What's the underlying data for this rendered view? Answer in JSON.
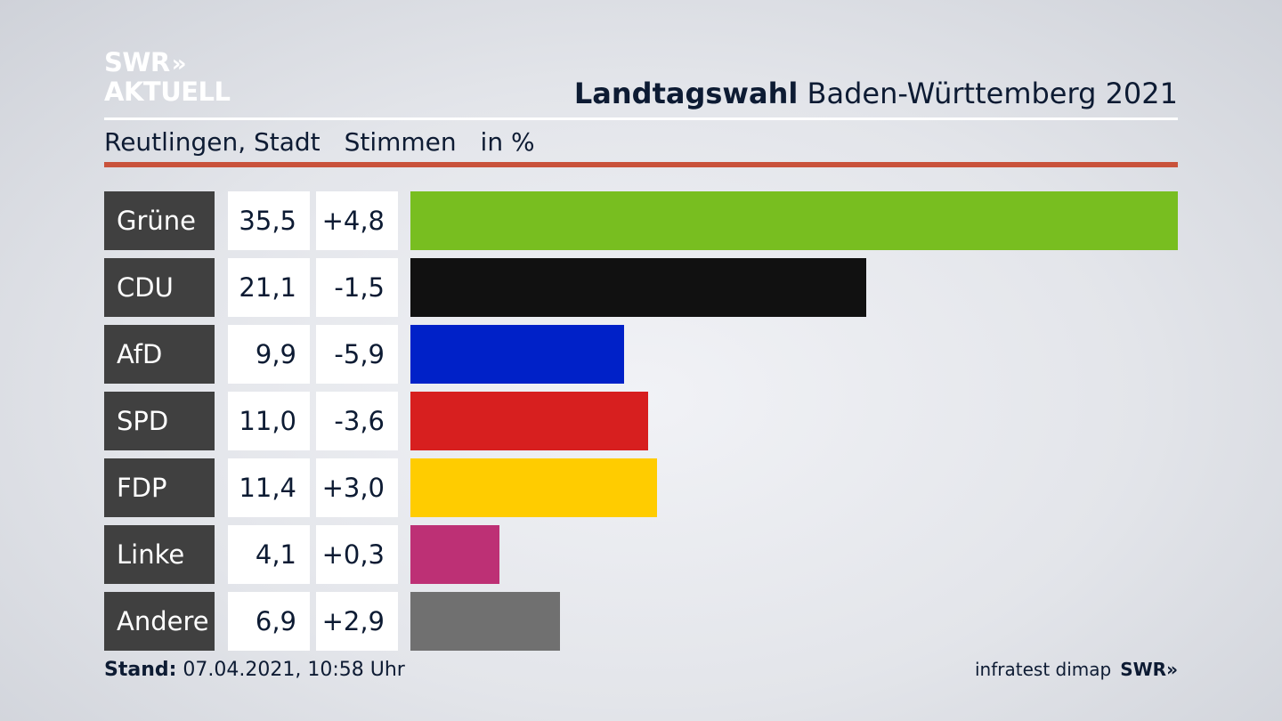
{
  "header": {
    "logo_line1": "SWR",
    "logo_chevrons": "»",
    "logo_line2": "AKTUELL",
    "title_bold": "Landtagswahl",
    "title_rest": "Baden-Württemberg 2021",
    "region": "Reutlingen, Stadt",
    "measure": "Stimmen",
    "unit": "in %"
  },
  "chart_data": {
    "type": "bar",
    "orientation": "horizontal",
    "categories": [
      "Grüne",
      "CDU",
      "AfD",
      "SPD",
      "FDP",
      "Linke",
      "Andere"
    ],
    "values": [
      35.5,
      21.1,
      9.9,
      11.0,
      11.4,
      4.1,
      6.9
    ],
    "value_labels": [
      "35,5",
      "21,1",
      "9,9",
      "11,0",
      "11,4",
      "4,1",
      "6,9"
    ],
    "change_labels": [
      "+4,8",
      "-1,5",
      "-5,9",
      "-3,6",
      "+3,0",
      "+0,3",
      "+2,9"
    ],
    "colors": [
      "#78be20",
      "#111111",
      "#0021c8",
      "#d71f1f",
      "#ffcc00",
      "#bd3075",
      "#707070"
    ],
    "xlim": [
      0,
      35.5
    ]
  },
  "footer": {
    "stand_label": "Stand:",
    "stand_value": "07.04.2021, 10:58 Uhr",
    "source": "infratest dimap",
    "brand": "SWR»"
  }
}
